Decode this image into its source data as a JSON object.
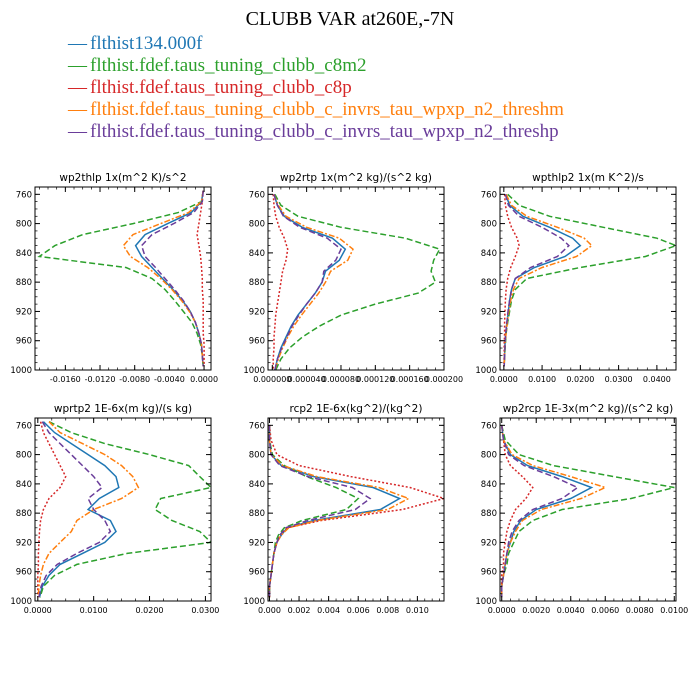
{
  "figure": {
    "title": "CLUBB VAR at260E,-7N",
    "legend": [
      {
        "label": "flthist134.000f",
        "color": "#1f77b4",
        "mark": "—"
      },
      {
        "label": "flthist.fdef.taus_tuning_clubb_c8m2",
        "color": "#2ca02c",
        "mark": "—"
      },
      {
        "label": "flthist.fdef.taus_tuning_clubb_c8p",
        "color": "#d62728",
        "mark": "—"
      },
      {
        "label": "flthist.fdef.taus_tuning_clubb_c_invrs_tau_wpxp_n2_threshm",
        "color": "#ff7f0e",
        "mark": "—"
      },
      {
        "label": "flthist.fdef.taus_tuning_clubb_c_invrs_tau_wpxp_n2_threshp",
        "color": "#6a3d9a",
        "mark": "—"
      }
    ]
  },
  "chart_data": [
    {
      "type": "line",
      "title": "wp2thlp  1x(m^2 K)/s^2",
      "xlim": [
        -0.0195,
        0.0008
      ],
      "ylim": [
        1000,
        750
      ],
      "xticks": [
        -0.016,
        -0.012,
        -0.008,
        -0.004,
        0.0
      ],
      "xtick_labels": [
        "-0.0160",
        "-0.0120",
        "-0.0080",
        "-0.0040",
        "0.0000"
      ],
      "yticks": [
        760,
        800,
        840,
        880,
        920,
        960,
        1000
      ],
      "ytick_labels": [
        "760",
        "800",
        "840",
        "880",
        "920",
        "960",
        "1000"
      ],
      "y": [
        755,
        770,
        785,
        800,
        815,
        830,
        845,
        860,
        875,
        890,
        905,
        920,
        935,
        950,
        965,
        980,
        995
      ],
      "series": [
        {
          "values": [
            -0.0001,
            -0.0003,
            -0.0015,
            -0.0042,
            -0.0068,
            -0.0079,
            -0.0072,
            -0.006,
            -0.0048,
            -0.0036,
            -0.0025,
            -0.0016,
            -0.001,
            -0.0006,
            -0.0003,
            -0.0002,
            -0.0001
          ],
          "color": "#1f77b4",
          "dash": ""
        },
        {
          "values": [
            -0.0001,
            -0.0003,
            -0.003,
            -0.0082,
            -0.014,
            -0.0172,
            -0.019,
            -0.009,
            -0.006,
            -0.0045,
            -0.0034,
            -0.0024,
            -0.0014,
            -0.0008,
            -0.0004,
            -0.0002,
            -0.0001
          ],
          "color": "#2ca02c",
          "dash": "6,3"
        },
        {
          "values": [
            -0.0001,
            -0.0002,
            -0.0004,
            -0.0006,
            -0.0008,
            -0.0006,
            -0.0004,
            -0.0003,
            -0.0002,
            -0.0002,
            -0.0001,
            -0.0001,
            -0.0001,
            -0.0001,
            0.0,
            0.0,
            0.0
          ],
          "color": "#d62728",
          "dash": "2,2"
        },
        {
          "values": [
            -0.0001,
            -0.0003,
            -0.0018,
            -0.005,
            -0.0082,
            -0.0093,
            -0.0085,
            -0.0065,
            -0.005,
            -0.0037,
            -0.0026,
            -0.0017,
            -0.001,
            -0.0006,
            -0.0003,
            -0.0002,
            -0.0001
          ],
          "color": "#ff7f0e",
          "dash": "6,2,2,2"
        },
        {
          "values": [
            -0.0001,
            -0.0002,
            -0.0012,
            -0.0035,
            -0.006,
            -0.0072,
            -0.0068,
            -0.0056,
            -0.0045,
            -0.0034,
            -0.0024,
            -0.0016,
            -0.001,
            -0.0006,
            -0.0003,
            -0.0002,
            -0.0001
          ],
          "color": "#6a3d9a",
          "dash": "6,3"
        }
      ]
    },
    {
      "type": "line",
      "title": "wp2rtp  1x(m^2 kg)/(s^2 kg)",
      "xlim": [
        -5e-06,
        0.0002
      ],
      "ylim": [
        1000,
        750
      ],
      "xticks": [
        0.0,
        4e-05,
        8e-05,
        0.00012,
        0.00016,
        0.0002
      ],
      "xtick_labels": [
        "0.000000",
        "0.000040",
        "0.000080",
        "0.000120",
        "0.000160",
        "0.000200"
      ],
      "yticks": [
        760,
        800,
        840,
        880,
        920,
        960,
        1000
      ],
      "ytick_labels": [
        "760",
        "800",
        "840",
        "880",
        "920",
        "960",
        "1000"
      ],
      "y": [
        760,
        775,
        790,
        805,
        820,
        835,
        850,
        865,
        880,
        895,
        910,
        925,
        940,
        955,
        970,
        985,
        1000
      ],
      "series": [
        {
          "values": [
            2e-06,
            6e-06,
            1.4e-05,
            3.5e-05,
            7e-05,
            8.5e-05,
            7.8e-05,
            6.2e-05,
            5.8e-05,
            5e-05,
            4e-05,
            3e-05,
            2.2e-05,
            1.6e-05,
            1e-05,
            6e-06,
            3e-06
          ],
          "color": "#1f77b4",
          "dash": ""
        },
        {
          "values": [
            3e-06,
            1e-05,
            3e-05,
            8e-05,
            0.000155,
            0.000195,
            0.000188,
            0.000185,
            0.00019,
            0.00017,
            0.00012,
            8e-05,
            5.5e-05,
            3.5e-05,
            2e-05,
            1e-05,
            4e-06
          ],
          "color": "#2ca02c",
          "dash": "6,3"
        },
        {
          "values": [
            1e-06,
            2e-06,
            4e-06,
            8e-06,
            1.4e-05,
            1.8e-05,
            1.6e-05,
            1.2e-05,
            1e-05,
            8e-06,
            6e-06,
            4e-06,
            3e-06,
            2e-06,
            2e-06,
            1e-06,
            1e-06
          ],
          "color": "#d62728",
          "dash": "2,2"
        },
        {
          "values": [
            2e-06,
            7e-06,
            1.6e-05,
            4e-05,
            7.8e-05,
            9.4e-05,
            8.8e-05,
            6.8e-05,
            6.2e-05,
            5.4e-05,
            4.4e-05,
            3.4e-05,
            2.5e-05,
            1.8e-05,
            1.2e-05,
            7e-06,
            3e-06
          ],
          "color": "#ff7f0e",
          "dash": "6,2,2,2"
        },
        {
          "values": [
            2e-06,
            6e-06,
            1.3e-05,
            3.2e-05,
            6.4e-05,
            8e-05,
            7.4e-05,
            6e-05,
            5.8e-05,
            5e-05,
            4e-05,
            3.1e-05,
            2.3e-05,
            1.7e-05,
            1.1e-05,
            6e-06,
            3e-06
          ],
          "color": "#6a3d9a",
          "dash": "6,3"
        }
      ]
    },
    {
      "type": "line",
      "title": "wpthlp2  1x(m K^2)/s",
      "xlim": [
        -0.001,
        0.045
      ],
      "ylim": [
        1000,
        750
      ],
      "xticks": [
        0.0,
        0.01,
        0.02,
        0.03,
        0.04
      ],
      "xtick_labels": [
        "0.0000",
        "0.0100",
        "0.0200",
        "0.0300",
        "0.0400"
      ],
      "yticks": [
        760,
        800,
        840,
        880,
        920,
        960,
        1000
      ],
      "ytick_labels": [
        "760",
        "800",
        "840",
        "880",
        "920",
        "960",
        "1000"
      ],
      "y": [
        760,
        775,
        790,
        805,
        820,
        830,
        845,
        860,
        875,
        890,
        905,
        920,
        935,
        950,
        965,
        980,
        995
      ],
      "series": [
        {
          "values": [
            0.0005,
            0.0015,
            0.005,
            0.012,
            0.018,
            0.02,
            0.016,
            0.008,
            0.003,
            0.002,
            0.0015,
            0.0012,
            0.0008,
            0.0005,
            0.0003,
            0.0002,
            0.0001
          ],
          "color": "#1f77b4",
          "dash": ""
        },
        {
          "values": [
            0.001,
            0.004,
            0.012,
            0.026,
            0.04,
            0.045,
            0.037,
            0.02,
            0.006,
            0.003,
            0.002,
            0.0015,
            0.001,
            0.0006,
            0.0004,
            0.0002,
            0.0001
          ],
          "color": "#2ca02c",
          "dash": "6,3"
        },
        {
          "values": [
            0.0002,
            0.0004,
            0.001,
            0.002,
            0.0035,
            0.004,
            0.003,
            0.0018,
            0.001,
            0.0006,
            0.0004,
            0.0003,
            0.0002,
            0.0002,
            0.0001,
            0.0001,
            0.0
          ],
          "color": "#d62728",
          "dash": "2,2"
        },
        {
          "values": [
            0.0006,
            0.002,
            0.006,
            0.014,
            0.021,
            0.023,
            0.019,
            0.01,
            0.004,
            0.0025,
            0.0018,
            0.0013,
            0.0009,
            0.0006,
            0.0003,
            0.0002,
            0.0001
          ],
          "color": "#ff7f0e",
          "dash": "6,2,2,2"
        },
        {
          "values": [
            0.0004,
            0.0012,
            0.004,
            0.01,
            0.015,
            0.017,
            0.014,
            0.007,
            0.003,
            0.002,
            0.0015,
            0.0011,
            0.0008,
            0.0005,
            0.0003,
            0.0002,
            0.0001
          ],
          "color": "#6a3d9a",
          "dash": "6,3"
        }
      ]
    },
    {
      "type": "line",
      "title": "wprtp2  1E-6x(m kg)/(s kg)",
      "xlim": [
        -0.0005,
        0.031
      ],
      "ylim": [
        1000,
        750
      ],
      "xticks": [
        0.0,
        0.01,
        0.02,
        0.03
      ],
      "xtick_labels": [
        "0.0000",
        "0.0100",
        "0.0200",
        "0.0300"
      ],
      "yticks": [
        760,
        800,
        840,
        880,
        920,
        960,
        1000
      ],
      "ytick_labels": [
        "760",
        "800",
        "840",
        "880",
        "920",
        "960",
        "1000"
      ],
      "y": [
        755,
        770,
        785,
        800,
        815,
        830,
        845,
        860,
        875,
        890,
        905,
        920,
        935,
        950,
        965,
        980,
        995
      ],
      "series": [
        {
          "values": [
            0.001,
            0.003,
            0.006,
            0.009,
            0.012,
            0.014,
            0.0145,
            0.011,
            0.009,
            0.013,
            0.014,
            0.012,
            0.008,
            0.004,
            0.002,
            0.0008,
            0.0003
          ],
          "color": "#1f77b4",
          "dash": ""
        },
        {
          "values": [
            0.002,
            0.006,
            0.012,
            0.02,
            0.027,
            0.029,
            0.031,
            0.022,
            0.021,
            0.024,
            0.029,
            0.031,
            0.016,
            0.007,
            0.003,
            0.001,
            0.0004
          ],
          "color": "#2ca02c",
          "dash": "6,3"
        },
        {
          "values": [
            0.0005,
            0.001,
            0.002,
            0.003,
            0.004,
            0.005,
            0.004,
            0.002,
            0.001,
            0.0005,
            0.0003,
            0.0002,
            0.0001,
            0.0001,
            0.0,
            0.0,
            0.0
          ],
          "color": "#d62728",
          "dash": "2,2"
        },
        {
          "values": [
            0.002,
            0.004,
            0.008,
            0.012,
            0.015,
            0.017,
            0.018,
            0.015,
            0.01,
            0.007,
            0.006,
            0.004,
            0.002,
            0.001,
            0.0005,
            0.0002,
            0.0001
          ],
          "color": "#ff7f0e",
          "dash": "6,2,2,2"
        },
        {
          "values": [
            0.0008,
            0.002,
            0.004,
            0.006,
            0.008,
            0.01,
            0.0115,
            0.009,
            0.01,
            0.012,
            0.013,
            0.011,
            0.007,
            0.0035,
            0.0015,
            0.0006,
            0.0002
          ],
          "color": "#6a3d9a",
          "dash": "6,3"
        }
      ]
    },
    {
      "type": "line",
      "title": "rcp2  1E-6x(kg^2)/(kg^2)",
      "xlim": [
        -0.0001,
        0.0118
      ],
      "ylim": [
        1000,
        750
      ],
      "xticks": [
        0.0,
        0.002,
        0.004,
        0.006,
        0.008,
        0.01
      ],
      "xtick_labels": [
        "0.000",
        "0.002",
        "0.004",
        "0.006",
        "0.008",
        "0.010"
      ],
      "yticks": [
        760,
        800,
        840,
        880,
        920,
        960,
        1000
      ],
      "ytick_labels": [
        "760",
        "800",
        "840",
        "880",
        "920",
        "960",
        "1000"
      ],
      "y": [
        760,
        780,
        800,
        815,
        830,
        845,
        860,
        875,
        890,
        900,
        910,
        920,
        935,
        950,
        965,
        980,
        995
      ],
      "series": [
        {
          "values": [
            0.0,
            0.0,
            0.0001,
            0.0008,
            0.003,
            0.007,
            0.0088,
            0.0075,
            0.003,
            0.0012,
            0.0008,
            0.0005,
            0.0003,
            0.0002,
            0.0001,
            0.0,
            0.0
          ],
          "color": "#1f77b4",
          "dash": ""
        },
        {
          "values": [
            0.0,
            0.0,
            0.0002,
            0.001,
            0.0025,
            0.0045,
            0.006,
            0.0052,
            0.0022,
            0.001,
            0.0006,
            0.0004,
            0.0003,
            0.0002,
            0.0001,
            0.0,
            0.0
          ],
          "color": "#2ca02c",
          "dash": "6,3"
        },
        {
          "values": [
            0.0,
            0.0001,
            0.0005,
            0.002,
            0.0055,
            0.0095,
            0.0118,
            0.009,
            0.0035,
            0.0012,
            0.0007,
            0.0005,
            0.0003,
            0.0002,
            0.0001,
            0.0,
            0.0
          ],
          "color": "#d62728",
          "dash": "2,2"
        },
        {
          "values": [
            0.0,
            0.0,
            0.0001,
            0.0009,
            0.0032,
            0.0074,
            0.0094,
            0.008,
            0.0032,
            0.0013,
            0.0008,
            0.0005,
            0.0003,
            0.0002,
            0.0001,
            0.0,
            0.0
          ],
          "color": "#ff7f0e",
          "dash": "6,2,2,2"
        },
        {
          "values": [
            0.0,
            0.0,
            0.0001,
            0.0007,
            0.0026,
            0.0056,
            0.0068,
            0.0058,
            0.0026,
            0.0011,
            0.0007,
            0.0005,
            0.0003,
            0.0002,
            0.0001,
            0.0,
            0.0
          ],
          "color": "#6a3d9a",
          "dash": "6,3"
        }
      ]
    },
    {
      "type": "line",
      "title": "wp2rcp  1E-3x(m^2 kg)/(s^2 kg)",
      "xlim": [
        -0.0001,
        0.0101
      ],
      "ylim": [
        1000,
        750
      ],
      "xticks": [
        0.0,
        0.002,
        0.004,
        0.006,
        0.008,
        0.01
      ],
      "xtick_labels": [
        "0.0000",
        "0.0020",
        "0.0040",
        "0.0060",
        "0.0080",
        "0.0100"
      ],
      "yticks": [
        760,
        800,
        840,
        880,
        920,
        960,
        1000
      ],
      "ytick_labels": [
        "760",
        "800",
        "840",
        "880",
        "920",
        "960",
        "1000"
      ],
      "y": [
        760,
        780,
        800,
        815,
        830,
        845,
        860,
        875,
        890,
        905,
        920,
        935,
        950,
        965,
        980,
        995
      ],
      "series": [
        {
          "values": [
            0.0,
            0.0001,
            0.0005,
            0.0015,
            0.0035,
            0.0052,
            0.004,
            0.002,
            0.0011,
            0.0007,
            0.0005,
            0.0003,
            0.0002,
            0.0001,
            0.0,
            0.0
          ],
          "color": "#1f77b4",
          "dash": ""
        },
        {
          "values": [
            0.0,
            0.0002,
            0.001,
            0.003,
            0.0065,
            0.01,
            0.0075,
            0.0035,
            0.0018,
            0.001,
            0.0007,
            0.0004,
            0.0003,
            0.0001,
            0.0,
            0.0
          ],
          "color": "#2ca02c",
          "dash": "6,3"
        },
        {
          "values": [
            0.0,
            0.0001,
            0.0002,
            0.0005,
            0.0012,
            0.0018,
            0.0014,
            0.0008,
            0.0005,
            0.0003,
            0.0002,
            0.0001,
            0.0001,
            0.0,
            0.0,
            0.0
          ],
          "color": "#d62728",
          "dash": "2,2"
        },
        {
          "values": [
            0.0,
            0.0001,
            0.0006,
            0.0018,
            0.004,
            0.006,
            0.0046,
            0.0023,
            0.0012,
            0.0008,
            0.0005,
            0.0003,
            0.0002,
            0.0001,
            0.0,
            0.0
          ],
          "color": "#ff7f0e",
          "dash": "6,2,2,2"
        },
        {
          "values": [
            0.0,
            0.0001,
            0.0004,
            0.0013,
            0.003,
            0.0044,
            0.0035,
            0.0018,
            0.001,
            0.0006,
            0.0004,
            0.0003,
            0.0002,
            0.0001,
            0.0,
            0.0
          ],
          "color": "#6a3d9a",
          "dash": "6,3"
        }
      ]
    }
  ]
}
